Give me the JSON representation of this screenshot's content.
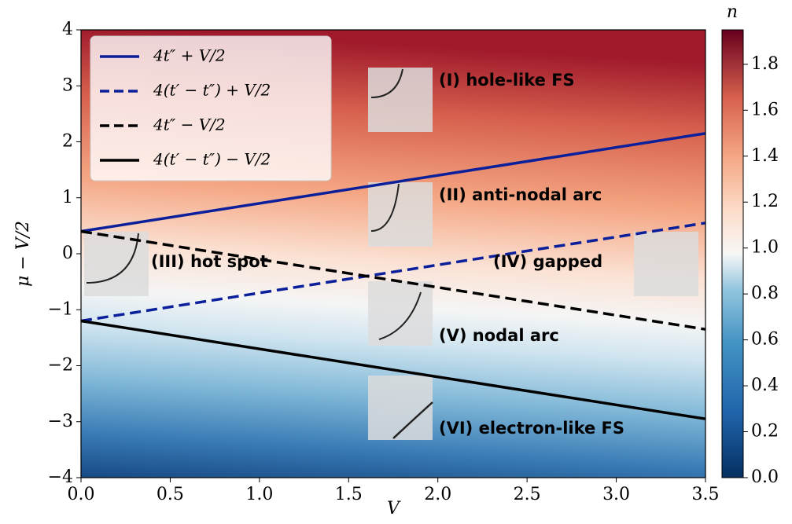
{
  "chart_data": {
    "type": "line",
    "xlabel": "V",
    "ylabel": "μ − V/2",
    "colorbar_label": "n",
    "xlim": [
      0,
      3.5
    ],
    "xticks": [
      {
        "value": 0,
        "label": "0.0"
      },
      0.5,
      {
        "value": 1,
        "label": "1.0"
      },
      1.5,
      {
        "value": 2,
        "label": "2.0"
      },
      2.5,
      {
        "value": 3,
        "label": "3.0"
      },
      3.5
    ],
    "ylim": [
      -4,
      4
    ],
    "yticks": [
      {
        "value": -4,
        "label": "−4"
      },
      {
        "value": -3,
        "label": "−3"
      },
      {
        "value": -2,
        "label": "−2"
      },
      {
        "value": -1,
        "label": "−1"
      },
      0,
      1,
      2,
      3,
      4
    ],
    "zlim": [
      0,
      1.95
    ],
    "zticks": [
      {
        "value": 0,
        "label": "0.0"
      },
      0.2,
      0.4,
      0.6,
      0.8,
      {
        "value": 1,
        "label": "1.0"
      },
      1.2,
      1.4,
      1.6,
      1.8
    ],
    "legend": "upper left",
    "series": [
      {
        "name": "4t″ + V/2",
        "color": "#0b1f9a",
        "linestyle": "solid",
        "x": [
          0,
          3.5
        ],
        "values": [
          0.4,
          2.15
        ]
      },
      {
        "name": "4(t′ − t″) + V/2",
        "color": "#0b1f9a",
        "linestyle": "dashed",
        "x": [
          0,
          3.5
        ],
        "values": [
          -1.2,
          0.55
        ]
      },
      {
        "name": "4t″ − V/2",
        "color": "#000000",
        "linestyle": "dashed",
        "x": [
          0,
          3.5
        ],
        "values": [
          0.4,
          -1.35
        ]
      },
      {
        "name": "4(t′ − t″) − V/2",
        "color": "#000000",
        "linestyle": "solid",
        "x": [
          0,
          3.5
        ],
        "values": [
          -1.2,
          -2.95
        ]
      }
    ],
    "annotations": [
      "(I) hole-like FS",
      "(II) anti-nodal arc",
      "(III) hot spot",
      "(IV) gapped",
      "(V) nodal arc",
      "(VI) electron-like FS"
    ]
  }
}
